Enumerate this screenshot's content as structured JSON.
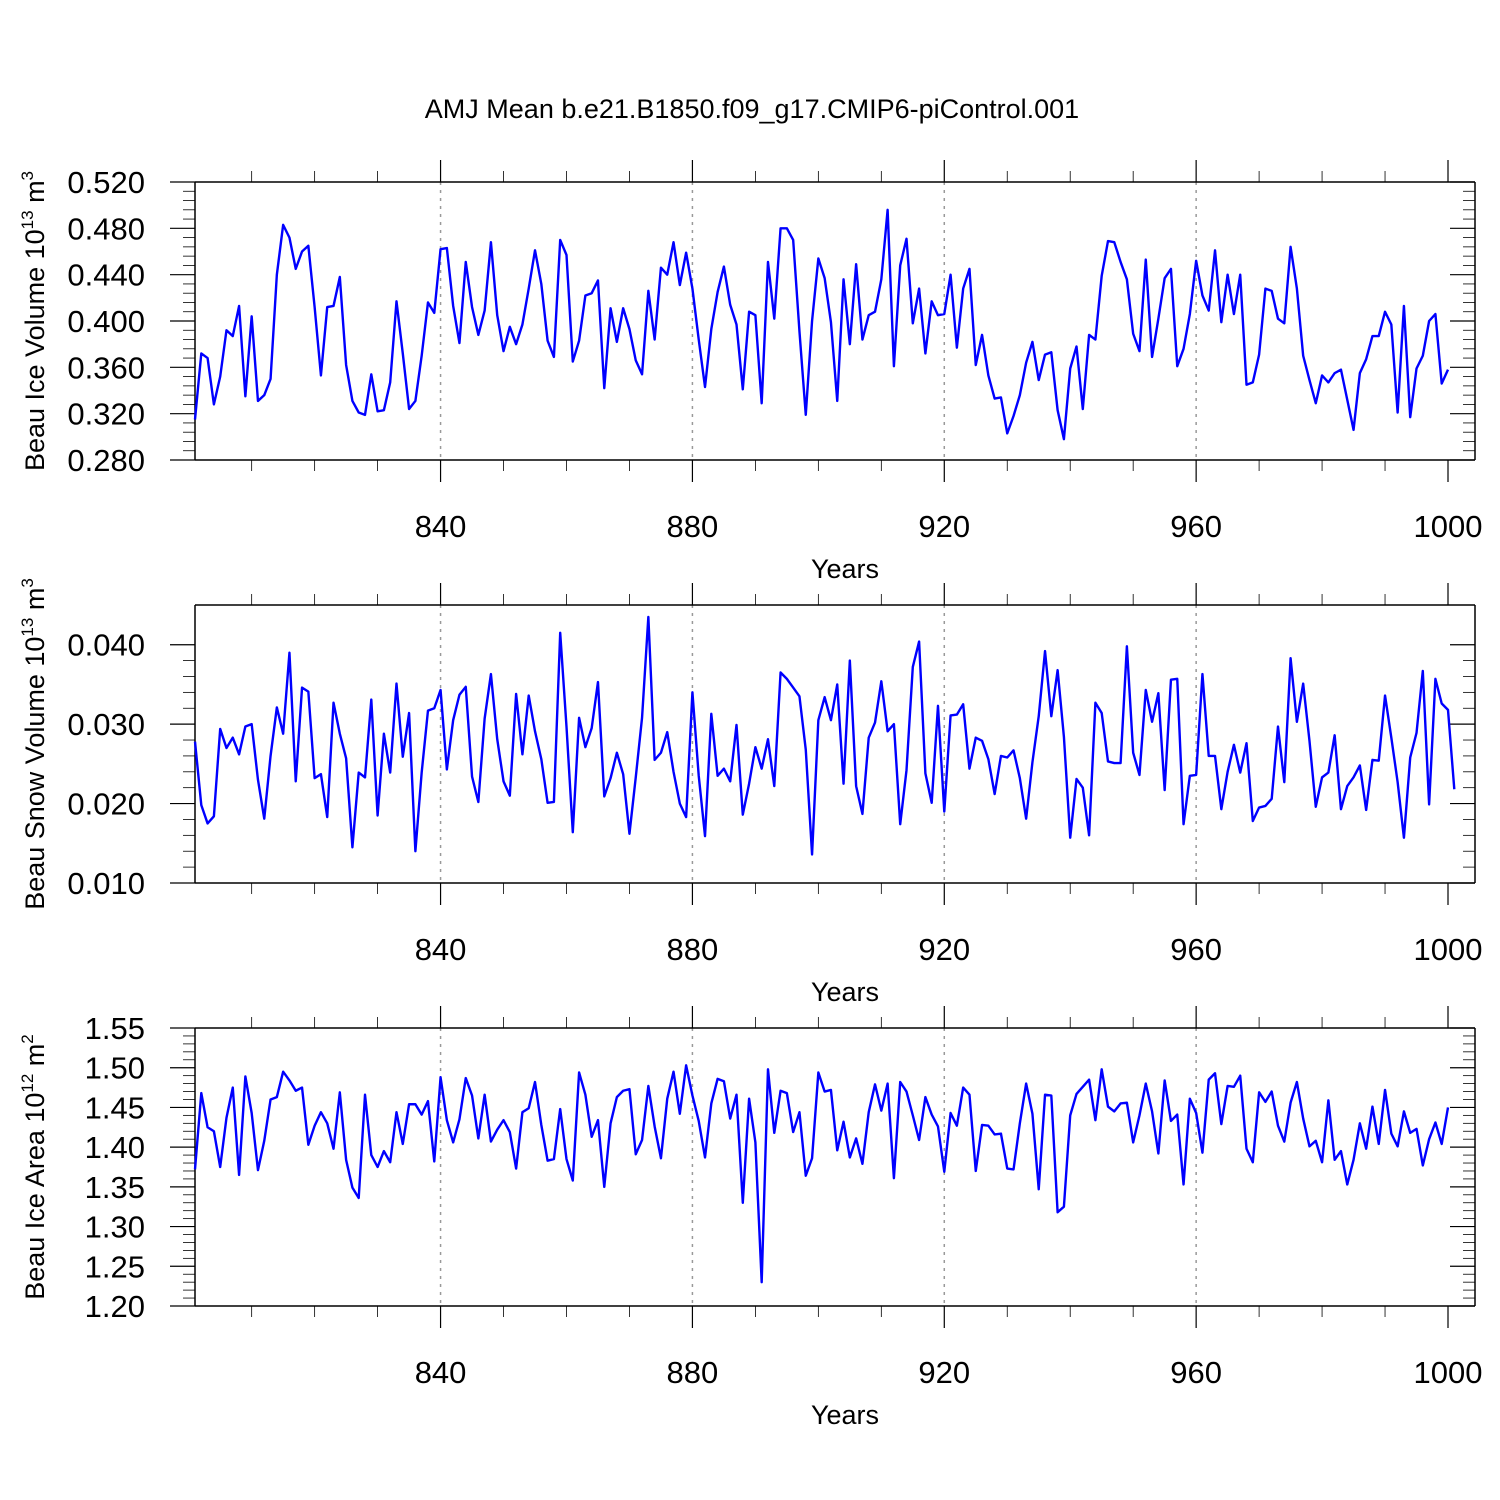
{
  "title": "AMJ Mean b.e21.B1850.f09_g17.CMIP6-piControl.001",
  "chart_data": [
    {
      "type": "line",
      "name": "beau-ice-volume",
      "xlabel": "Years",
      "ylabel": {
        "main": "Beau Ice Volume 10",
        "sup1": "13",
        "mid": " m",
        "sup2": "3"
      },
      "xlim": [
        801,
        1000
      ],
      "ylim": [
        0.28,
        0.52
      ],
      "x_ticks": [
        840,
        880,
        920,
        960,
        1000
      ],
      "x_tick_labels": [
        "840",
        "880",
        "920",
        "960",
        "1000"
      ],
      "y_ticks": [
        0.28,
        0.32,
        0.36,
        0.4,
        0.44,
        0.48,
        0.52
      ],
      "y_tick_labels": [
        "0.280",
        "0.320",
        "0.360",
        "0.400",
        "0.440",
        "0.480",
        "0.520"
      ],
      "grid_x": [
        840,
        880,
        920,
        960
      ],
      "color": "#0000ff",
      "x_start": 801,
      "values": [
        0.315,
        0.372,
        0.368,
        0.328,
        0.352,
        0.392,
        0.387,
        0.413,
        0.335,
        0.404,
        0.331,
        0.336,
        0.35,
        0.44,
        0.483,
        0.472,
        0.445,
        0.46,
        0.465,
        0.412,
        0.353,
        0.412,
        0.413,
        0.438,
        0.362,
        0.331,
        0.321,
        0.319,
        0.354,
        0.322,
        0.323,
        0.347,
        0.417,
        0.372,
        0.324,
        0.331,
        0.37,
        0.416,
        0.407,
        0.462,
        0.463,
        0.413,
        0.381,
        0.451,
        0.412,
        0.388,
        0.409,
        0.468,
        0.405,
        0.374,
        0.395,
        0.38,
        0.397,
        0.428,
        0.461,
        0.432,
        0.383,
        0.369,
        0.47,
        0.457,
        0.365,
        0.383,
        0.422,
        0.424,
        0.435,
        0.342,
        0.411,
        0.382,
        0.411,
        0.393,
        0.366,
        0.354,
        0.426,
        0.384,
        0.446,
        0.44,
        0.468,
        0.431,
        0.459,
        0.428,
        0.384,
        0.343,
        0.393,
        0.425,
        0.447,
        0.414,
        0.397,
        0.341,
        0.408,
        0.405,
        0.329,
        0.451,
        0.402,
        0.48,
        0.48,
        0.47,
        0.391,
        0.319,
        0.4,
        0.454,
        0.437,
        0.399,
        0.331,
        0.436,
        0.38,
        0.449,
        0.384,
        0.405,
        0.408,
        0.436,
        0.496,
        0.361,
        0.448,
        0.471,
        0.398,
        0.428,
        0.372,
        0.417,
        0.405,
        0.406,
        0.44,
        0.377,
        0.428,
        0.445,
        0.362,
        0.388,
        0.353,
        0.333,
        0.334,
        0.303,
        0.318,
        0.336,
        0.364,
        0.382,
        0.349,
        0.371,
        0.373,
        0.323,
        0.298,
        0.359,
        0.378,
        0.324,
        0.388,
        0.384,
        0.439,
        0.469,
        0.468,
        0.451,
        0.436,
        0.389,
        0.374,
        0.453,
        0.369,
        0.402,
        0.437,
        0.445,
        0.361,
        0.376,
        0.406,
        0.452,
        0.422,
        0.409,
        0.461,
        0.399,
        0.44,
        0.406,
        0.44,
        0.345,
        0.347,
        0.371,
        0.428,
        0.426,
        0.402,
        0.398,
        0.464,
        0.428,
        0.37,
        0.349,
        0.329,
        0.353,
        0.347,
        0.355,
        0.358,
        0.332,
        0.306,
        0.355,
        0.367,
        0.387,
        0.387,
        0.408,
        0.397,
        0.321,
        0.413,
        0.317,
        0.359,
        0.37,
        0.4,
        0.406,
        0.346,
        0.358
      ]
    },
    {
      "type": "line",
      "name": "beau-snow-volume",
      "xlabel": "Years",
      "ylabel": {
        "main": "Beau Snow Volume 10",
        "sup1": "13",
        "mid": " m",
        "sup2": "3"
      },
      "xlim": [
        801,
        1000
      ],
      "ylim": [
        0.01,
        0.045
      ],
      "x_ticks": [
        840,
        880,
        920,
        960,
        1000
      ],
      "x_tick_labels": [
        "840",
        "880",
        "920",
        "960",
        "1000"
      ],
      "y_ticks": [
        0.01,
        0.02,
        0.03,
        0.04
      ],
      "y_tick_labels": [
        "0.010",
        "0.020",
        "0.030",
        "0.040"
      ],
      "grid_x": [
        840,
        880,
        920,
        960
      ],
      "color": "#0000ff",
      "x_start": 801,
      "values": [
        0.0278,
        0.0198,
        0.0175,
        0.0184,
        0.0294,
        0.027,
        0.0283,
        0.0262,
        0.0297,
        0.03,
        0.023,
        0.0181,
        0.026,
        0.0321,
        0.0288,
        0.039,
        0.0228,
        0.0346,
        0.0341,
        0.0232,
        0.0237,
        0.0183,
        0.0327,
        0.0288,
        0.0257,
        0.0145,
        0.0239,
        0.0233,
        0.0331,
        0.0185,
        0.0288,
        0.0239,
        0.0351,
        0.0259,
        0.0314,
        0.014,
        0.0239,
        0.0317,
        0.032,
        0.0343,
        0.0243,
        0.0305,
        0.0337,
        0.0347,
        0.0234,
        0.0202,
        0.0307,
        0.0363,
        0.0281,
        0.0228,
        0.021,
        0.0338,
        0.0262,
        0.0336,
        0.0291,
        0.0256,
        0.0201,
        0.0202,
        0.0415,
        0.0297,
        0.0164,
        0.0308,
        0.0271,
        0.0295,
        0.0353,
        0.0209,
        0.0232,
        0.0264,
        0.0237,
        0.0162,
        0.0233,
        0.0308,
        0.0435,
        0.0255,
        0.0264,
        0.029,
        0.024,
        0.02,
        0.0183,
        0.034,
        0.0235,
        0.0159,
        0.0313,
        0.0235,
        0.0244,
        0.0228,
        0.0299,
        0.0186,
        0.0225,
        0.0271,
        0.0244,
        0.0281,
        0.0222,
        0.0365,
        0.0357,
        0.0346,
        0.0335,
        0.0268,
        0.0136,
        0.0305,
        0.0334,
        0.0305,
        0.035,
        0.0225,
        0.038,
        0.0222,
        0.0187,
        0.0283,
        0.0302,
        0.0354,
        0.0291,
        0.03,
        0.0174,
        0.0242,
        0.0372,
        0.0404,
        0.0238,
        0.0201,
        0.0323,
        0.019,
        0.0311,
        0.0312,
        0.0325,
        0.0244,
        0.0283,
        0.0279,
        0.0256,
        0.0212,
        0.026,
        0.0258,
        0.0267,
        0.0232,
        0.0181,
        0.0252,
        0.031,
        0.0392,
        0.031,
        0.0368,
        0.0284,
        0.0157,
        0.0231,
        0.022,
        0.016,
        0.0327,
        0.0314,
        0.0253,
        0.0251,
        0.0251,
        0.0398,
        0.0264,
        0.0236,
        0.0343,
        0.0303,
        0.0339,
        0.0217,
        0.0356,
        0.0357,
        0.0174,
        0.0235,
        0.0236,
        0.0363,
        0.026,
        0.026,
        0.0193,
        0.024,
        0.0274,
        0.0239,
        0.0276,
        0.0178,
        0.0195,
        0.0197,
        0.0206,
        0.0297,
        0.0227,
        0.0383,
        0.0303,
        0.0351,
        0.0279,
        0.0196,
        0.0233,
        0.0239,
        0.0286,
        0.0193,
        0.0222,
        0.0233,
        0.0248,
        0.0192,
        0.0255,
        0.0254,
        0.0336,
        0.0283,
        0.0227,
        0.0157,
        0.0258,
        0.0289,
        0.0367,
        0.0199,
        0.0357,
        0.0326,
        0.0318,
        0.0218
      ]
    },
    {
      "type": "line",
      "name": "beau-ice-area",
      "xlabel": "Years",
      "ylabel": {
        "main": "Beau Ice Area 10",
        "sup1": "12",
        "mid": " m",
        "sup2": "2"
      },
      "xlim": [
        801,
        1000
      ],
      "ylim": [
        1.2,
        1.55
      ],
      "x_ticks": [
        840,
        880,
        920,
        960,
        1000
      ],
      "x_tick_labels": [
        "840",
        "880",
        "920",
        "960",
        "1000"
      ],
      "y_ticks": [
        1.2,
        1.25,
        1.3,
        1.35,
        1.4,
        1.45,
        1.5,
        1.55
      ],
      "y_tick_labels": [
        "1.20",
        "1.25",
        "1.30",
        "1.35",
        "1.40",
        "1.45",
        "1.50",
        "1.55"
      ],
      "grid_x": [
        840,
        880,
        920,
        960
      ],
      "color": "#0000ff",
      "x_start": 801,
      "values": [
        1.372,
        1.468,
        1.425,
        1.42,
        1.375,
        1.437,
        1.475,
        1.365,
        1.489,
        1.443,
        1.371,
        1.408,
        1.46,
        1.463,
        1.495,
        1.484,
        1.471,
        1.475,
        1.403,
        1.427,
        1.444,
        1.43,
        1.398,
        1.469,
        1.384,
        1.349,
        1.336,
        1.466,
        1.39,
        1.375,
        1.395,
        1.381,
        1.444,
        1.404,
        1.454,
        1.454,
        1.441,
        1.458,
        1.382,
        1.488,
        1.434,
        1.406,
        1.435,
        1.487,
        1.465,
        1.411,
        1.466,
        1.407,
        1.422,
        1.434,
        1.419,
        1.373,
        1.444,
        1.449,
        1.482,
        1.428,
        1.383,
        1.385,
        1.448,
        1.385,
        1.358,
        1.494,
        1.466,
        1.413,
        1.434,
        1.35,
        1.43,
        1.463,
        1.471,
        1.473,
        1.391,
        1.409,
        1.477,
        1.426,
        1.386,
        1.461,
        1.495,
        1.442,
        1.503,
        1.465,
        1.433,
        1.387,
        1.455,
        1.486,
        1.483,
        1.436,
        1.466,
        1.33,
        1.461,
        1.406,
        1.23,
        1.498,
        1.418,
        1.471,
        1.468,
        1.419,
        1.444,
        1.364,
        1.386,
        1.494,
        1.47,
        1.472,
        1.396,
        1.432,
        1.387,
        1.411,
        1.379,
        1.444,
        1.479,
        1.446,
        1.48,
        1.361,
        1.482,
        1.47,
        1.44,
        1.409,
        1.463,
        1.441,
        1.426,
        1.369,
        1.443,
        1.427,
        1.475,
        1.466,
        1.37,
        1.428,
        1.427,
        1.416,
        1.417,
        1.373,
        1.372,
        1.43,
        1.48,
        1.442,
        1.347,
        1.466,
        1.465,
        1.318,
        1.325,
        1.44,
        1.467,
        1.476,
        1.485,
        1.434,
        1.498,
        1.451,
        1.445,
        1.455,
        1.456,
        1.406,
        1.44,
        1.48,
        1.445,
        1.392,
        1.484,
        1.433,
        1.441,
        1.353,
        1.461,
        1.443,
        1.393,
        1.485,
        1.493,
        1.429,
        1.477,
        1.476,
        1.49,
        1.398,
        1.381,
        1.469,
        1.457,
        1.47,
        1.427,
        1.407,
        1.456,
        1.482,
        1.436,
        1.401,
        1.408,
        1.381,
        1.459,
        1.384,
        1.395,
        1.353,
        1.384,
        1.43,
        1.398,
        1.451,
        1.404,
        1.472,
        1.417,
        1.401,
        1.445,
        1.418,
        1.423,
        1.377,
        1.41,
        1.431,
        1.404,
        1.45
      ]
    }
  ]
}
